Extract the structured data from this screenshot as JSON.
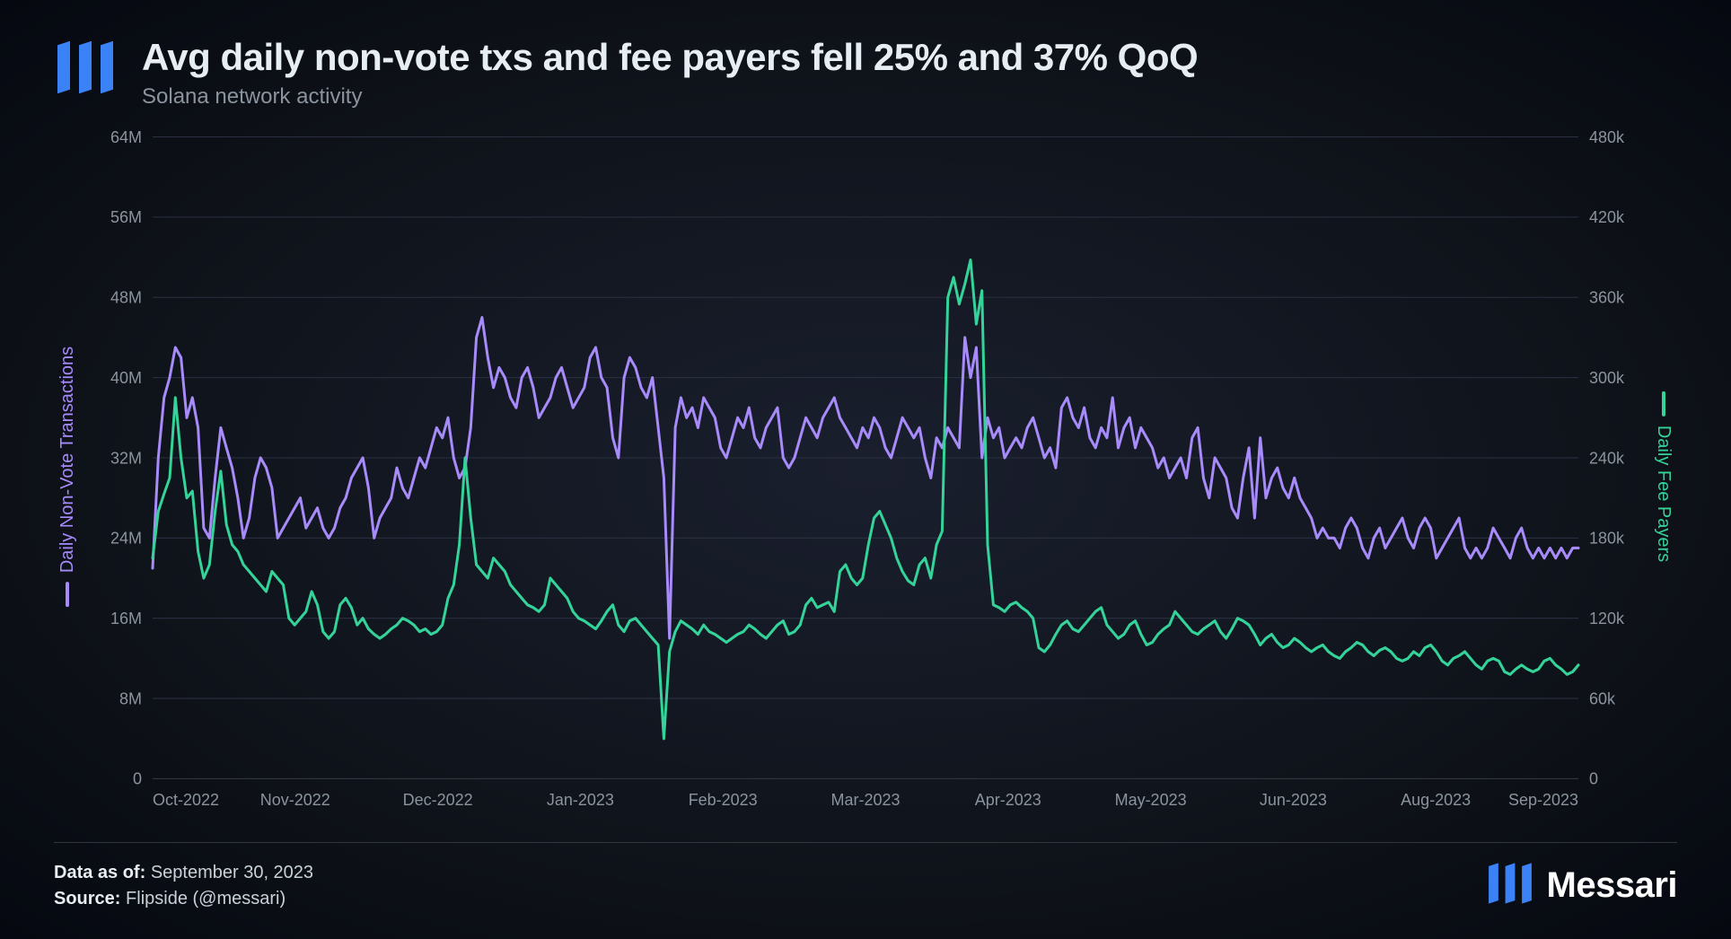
{
  "header": {
    "title": "Avg daily non-vote txs and fee payers fell 25% and 37% QoQ",
    "subtitle": "Solana network activity"
  },
  "chart": {
    "type": "line-dual-axis",
    "background_gradient": [
      "#1a1f2e",
      "#0d1117",
      "#050810"
    ],
    "grid_color": "#2a3040",
    "tick_text_color": "#8b949e",
    "tick_fontsize": 18,
    "line_width": 3,
    "y_left": {
      "label": "Daily Non-Vote Transactions",
      "label_color": "#a78bfa",
      "min": 0,
      "max": 64,
      "ticks": [
        0,
        8,
        16,
        24,
        32,
        40,
        48,
        56,
        64
      ],
      "tick_labels": [
        "0",
        "8M",
        "16M",
        "24M",
        "32M",
        "40M",
        "48M",
        "56M",
        "64M"
      ]
    },
    "y_right": {
      "label": "Daily Fee Payers",
      "label_color": "#34d399",
      "min": 0,
      "max": 480,
      "ticks": [
        0,
        60,
        120,
        180,
        240,
        300,
        360,
        420,
        480
      ],
      "tick_labels": [
        "0",
        "60k",
        "120k",
        "180k",
        "240k",
        "300k",
        "360k",
        "420k",
        "480k"
      ]
    },
    "x_ticks": [
      "Oct-2022",
      "Nov-2022",
      "Dec-2022",
      "Jan-2023",
      "Feb-2023",
      "Mar-2023",
      "Apr-2023",
      "May-2023",
      "Jun-2023",
      "Aug-2023",
      "Sep-2023"
    ],
    "series": [
      {
        "name": "Daily Non-Vote Transactions",
        "axis": "left",
        "color": "#a78bfa",
        "data": [
          21,
          32,
          38,
          40,
          43,
          42,
          36,
          38,
          35,
          25,
          24,
          30,
          35,
          33,
          31,
          28,
          24,
          26,
          30,
          32,
          31,
          29,
          24,
          25,
          26,
          27,
          28,
          25,
          26,
          27,
          25,
          24,
          25,
          27,
          28,
          30,
          31,
          32,
          29,
          24,
          26,
          27,
          28,
          31,
          29,
          28,
          30,
          32,
          31,
          33,
          35,
          34,
          36,
          32,
          30,
          31,
          35,
          44,
          46,
          42,
          39,
          41,
          40,
          38,
          37,
          40,
          41,
          39,
          36,
          37,
          38,
          40,
          41,
          39,
          37,
          38,
          39,
          42,
          43,
          40,
          39,
          34,
          32,
          40,
          42,
          41,
          39,
          38,
          40,
          35,
          30,
          14,
          35,
          38,
          36,
          37,
          35,
          38,
          37,
          36,
          33,
          32,
          34,
          36,
          35,
          37,
          34,
          33,
          35,
          36,
          37,
          32,
          31,
          32,
          34,
          36,
          35,
          34,
          36,
          37,
          38,
          36,
          35,
          34,
          33,
          35,
          34,
          36,
          35,
          33,
          32,
          34,
          36,
          35,
          34,
          35,
          32,
          30,
          34,
          33,
          35,
          34,
          33,
          44,
          40,
          43,
          32,
          36,
          34,
          35,
          32,
          33,
          34,
          33,
          35,
          36,
          34,
          32,
          33,
          31,
          37,
          38,
          36,
          35,
          37,
          34,
          33,
          35,
          34,
          38,
          33,
          35,
          36,
          33,
          35,
          34,
          33,
          31,
          32,
          30,
          31,
          32,
          30,
          34,
          35,
          30,
          28,
          32,
          31,
          30,
          27,
          26,
          30,
          33,
          26,
          34,
          28,
          30,
          31,
          29,
          28,
          30,
          28,
          27,
          26,
          24,
          25,
          24,
          24,
          23,
          25,
          26,
          25,
          23,
          22,
          24,
          25,
          23,
          24,
          25,
          26,
          24,
          23,
          25,
          26,
          25,
          22,
          23,
          24,
          25,
          26,
          23,
          22,
          23,
          22,
          23,
          25,
          24,
          23,
          22,
          24,
          25,
          23,
          22,
          23,
          22,
          23,
          22,
          23,
          22,
          23,
          23
        ]
      },
      {
        "name": "Daily Fee Payers",
        "axis": "right",
        "color": "#34d399",
        "data": [
          165,
          200,
          213,
          225,
          285,
          240,
          210,
          215,
          170,
          150,
          160,
          200,
          230,
          190,
          175,
          170,
          160,
          155,
          150,
          145,
          140,
          155,
          150,
          145,
          120,
          115,
          120,
          125,
          140,
          130,
          110,
          105,
          110,
          130,
          135,
          128,
          115,
          120,
          112,
          108,
          105,
          108,
          112,
          115,
          120,
          118,
          115,
          110,
          112,
          108,
          110,
          115,
          135,
          145,
          175,
          240,
          195,
          160,
          155,
          150,
          165,
          160,
          155,
          145,
          140,
          135,
          130,
          128,
          125,
          130,
          150,
          145,
          140,
          135,
          125,
          120,
          118,
          115,
          112,
          118,
          125,
          130,
          115,
          110,
          118,
          120,
          115,
          110,
          105,
          100,
          30,
          95,
          110,
          118,
          115,
          112,
          108,
          115,
          110,
          108,
          105,
          102,
          105,
          108,
          110,
          115,
          112,
          108,
          105,
          110,
          115,
          118,
          108,
          110,
          115,
          130,
          135,
          128,
          130,
          132,
          125,
          155,
          160,
          150,
          145,
          150,
          175,
          195,
          200,
          190,
          180,
          165,
          155,
          148,
          145,
          160,
          165,
          150,
          175,
          185,
          360,
          375,
          355,
          370,
          388,
          340,
          365,
          175,
          130,
          128,
          125,
          130,
          132,
          128,
          125,
          120,
          98,
          95,
          100,
          108,
          115,
          118,
          112,
          110,
          115,
          120,
          125,
          128,
          115,
          110,
          105,
          108,
          115,
          118,
          108,
          100,
          102,
          108,
          112,
          115,
          125,
          120,
          115,
          110,
          108,
          112,
          115,
          118,
          110,
          105,
          112,
          120,
          118,
          115,
          108,
          100,
          105,
          108,
          102,
          98,
          100,
          105,
          102,
          98,
          95,
          98,
          100,
          95,
          92,
          90,
          95,
          98,
          102,
          100,
          95,
          92,
          96,
          98,
          95,
          90,
          88,
          90,
          95,
          92,
          98,
          100,
          95,
          88,
          85,
          90,
          92,
          95,
          90,
          85,
          82,
          88,
          90,
          88,
          80,
          78,
          82,
          85,
          82,
          80,
          82,
          88,
          90,
          85,
          82,
          78,
          80,
          85
        ]
      }
    ]
  },
  "footer": {
    "data_as_of_label": "Data as of:",
    "data_as_of_value": "September 30, 2023",
    "source_label": "Source:",
    "source_value": "Flipside (@messari)",
    "brand": "Messari",
    "brand_color": "#3b82f6"
  }
}
